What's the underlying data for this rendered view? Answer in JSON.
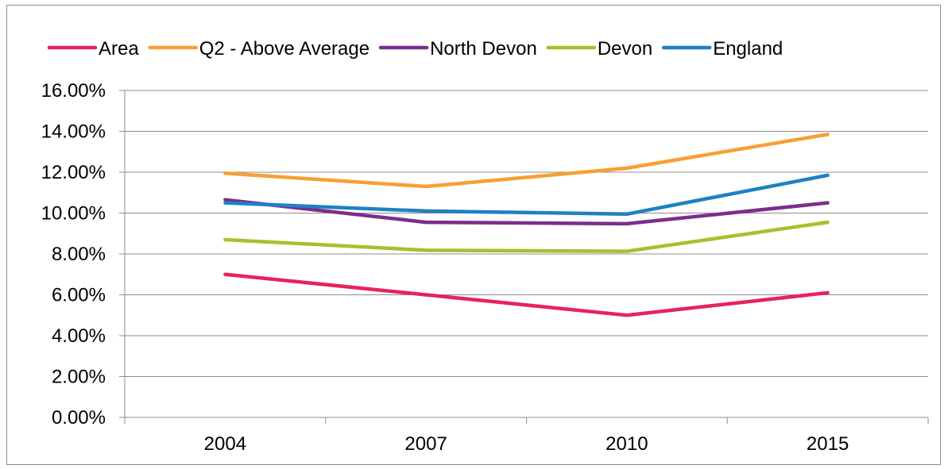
{
  "chart_data": {
    "type": "line",
    "categories": [
      "2004",
      "2007",
      "2010",
      "2015"
    ],
    "ylim": [
      0,
      0.16
    ],
    "y_ticks": [
      0,
      0.02,
      0.04,
      0.06,
      0.08,
      0.1,
      0.12,
      0.14,
      0.16
    ],
    "y_tick_labels": [
      "0.00%",
      "2.00%",
      "4.00%",
      "6.00%",
      "8.00%",
      "10.00%",
      "12.00%",
      "14.00%",
      "16.00%"
    ],
    "grid": true,
    "legend_position": "top",
    "series": [
      {
        "name": "Area",
        "color": "#e8225a",
        "values": [
          0.07,
          0.06,
          0.05,
          0.061
        ]
      },
      {
        "name": "Q2 - Above Average",
        "color": "#f7a033",
        "values": [
          0.1195,
          0.113,
          0.122,
          0.1385
        ]
      },
      {
        "name": "North Devon",
        "color": "#7b2d8c",
        "values": [
          0.1065,
          0.0955,
          0.0948,
          0.105
        ]
      },
      {
        "name": "Devon",
        "color": "#a8c030",
        "values": [
          0.087,
          0.0818,
          0.0813,
          0.0955
        ]
      },
      {
        "name": "England",
        "color": "#1f80c4",
        "values": [
          0.105,
          0.101,
          0.0995,
          0.1185
        ]
      }
    ]
  }
}
